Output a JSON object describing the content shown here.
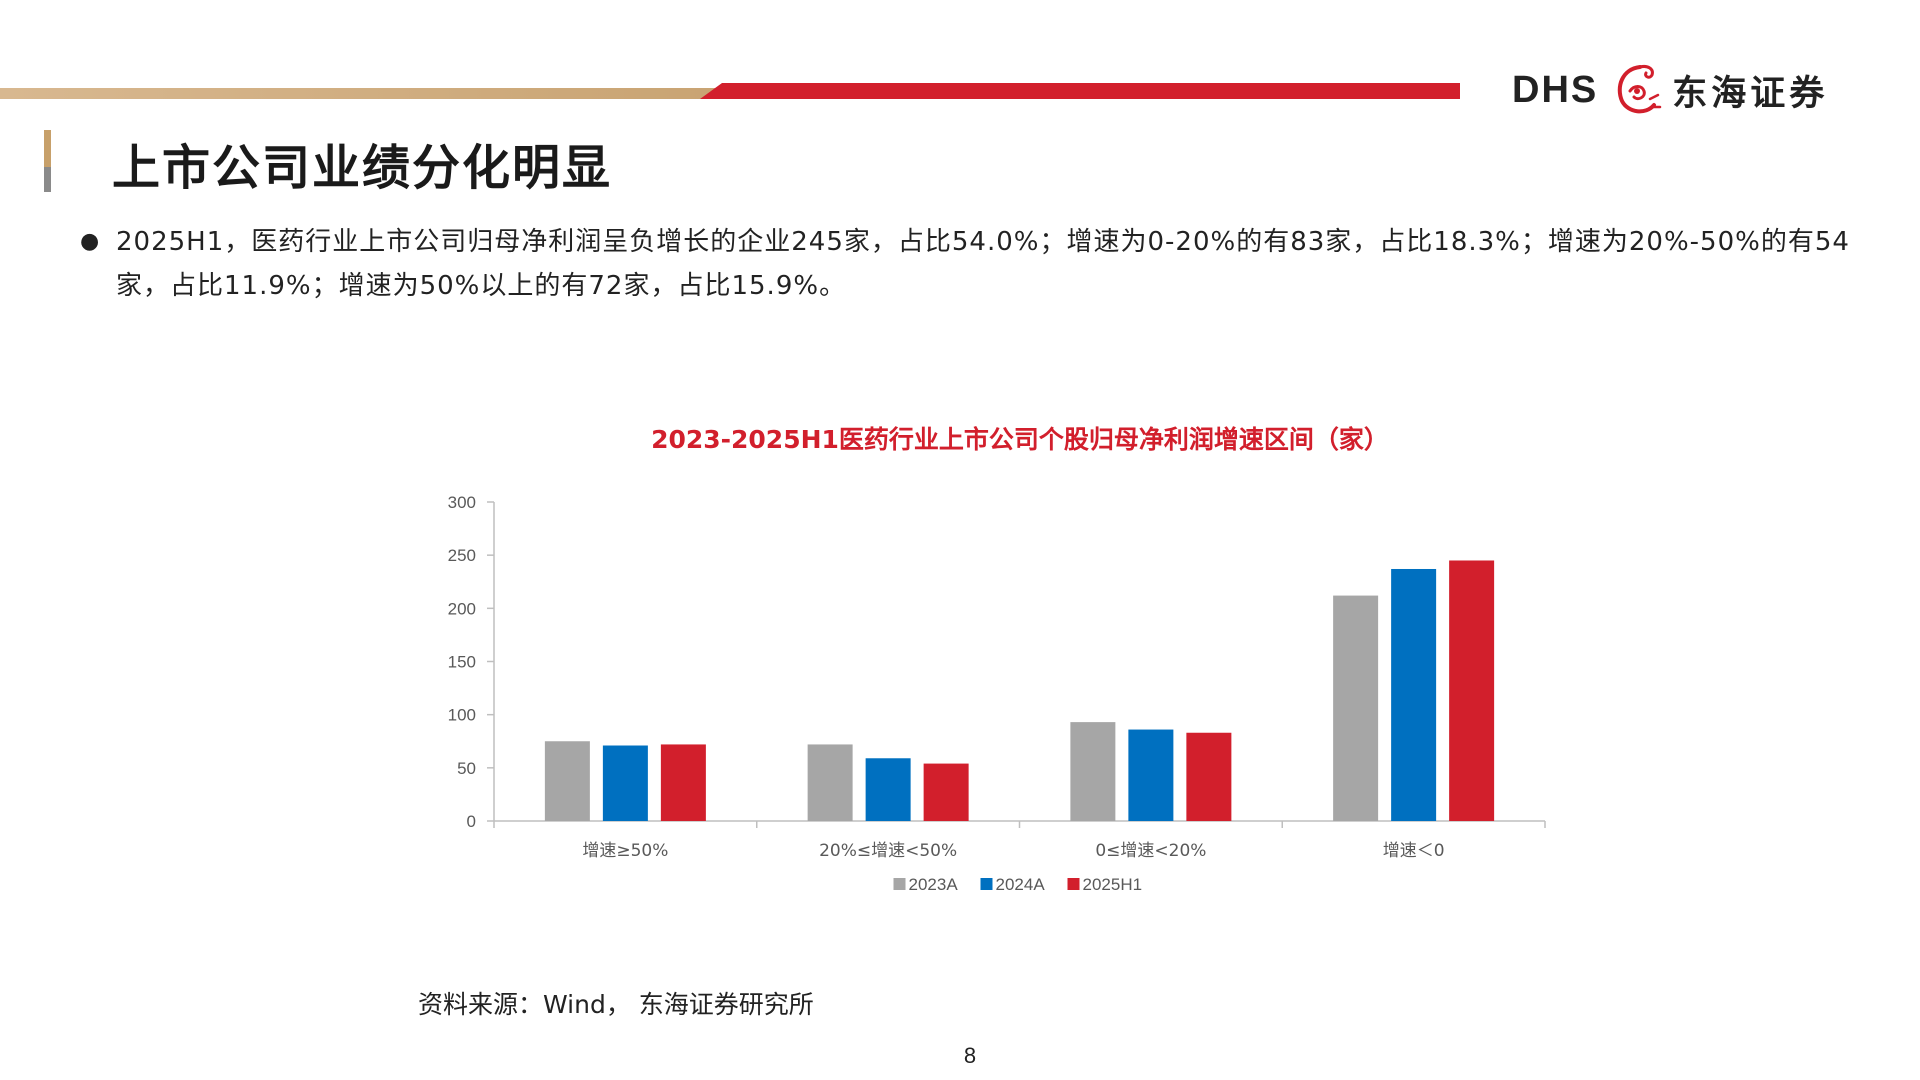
{
  "branding": {
    "logo_text": "DHS",
    "logo_cn": "东海证券",
    "colors": {
      "brand_red": "#d21f2c",
      "brand_gold": "#c9a473"
    }
  },
  "title": "上市公司业绩分化明显",
  "summary": {
    "bullet": "●",
    "text": "2025H1，医药行业上市公司归母净利润呈负增长的企业245家，占比54.0%；增速为0-20%的有83家，占比18.3%；增速为20%-50%的有54家，占比11.9%；增速为50%以上的有72家，占比15.9%。"
  },
  "chart_data": {
    "type": "bar",
    "title": "2023-2025H1医药行业上市公司个股归母净利润增速区间（家）",
    "categories": [
      "增速≥50%",
      "20%≤增速<50%",
      "0≤增速<20%",
      "增速＜0"
    ],
    "series": [
      {
        "name": "2023A",
        "color": "#a6a6a6",
        "values": [
          75,
          72,
          93,
          212
        ]
      },
      {
        "name": "2024A",
        "color": "#0070c0",
        "values": [
          71,
          59,
          86,
          237
        ]
      },
      {
        "name": "2025H1",
        "color": "#d21f2c",
        "values": [
          72,
          54,
          83,
          245
        ]
      }
    ],
    "ylim": [
      0,
      300
    ],
    "yticks": [
      0,
      50,
      100,
      150,
      200,
      250,
      300
    ],
    "grid": false,
    "legend_position": "bottom"
  },
  "source": "资料来源：Wind， 东海证券研究所",
  "page_number": "8"
}
